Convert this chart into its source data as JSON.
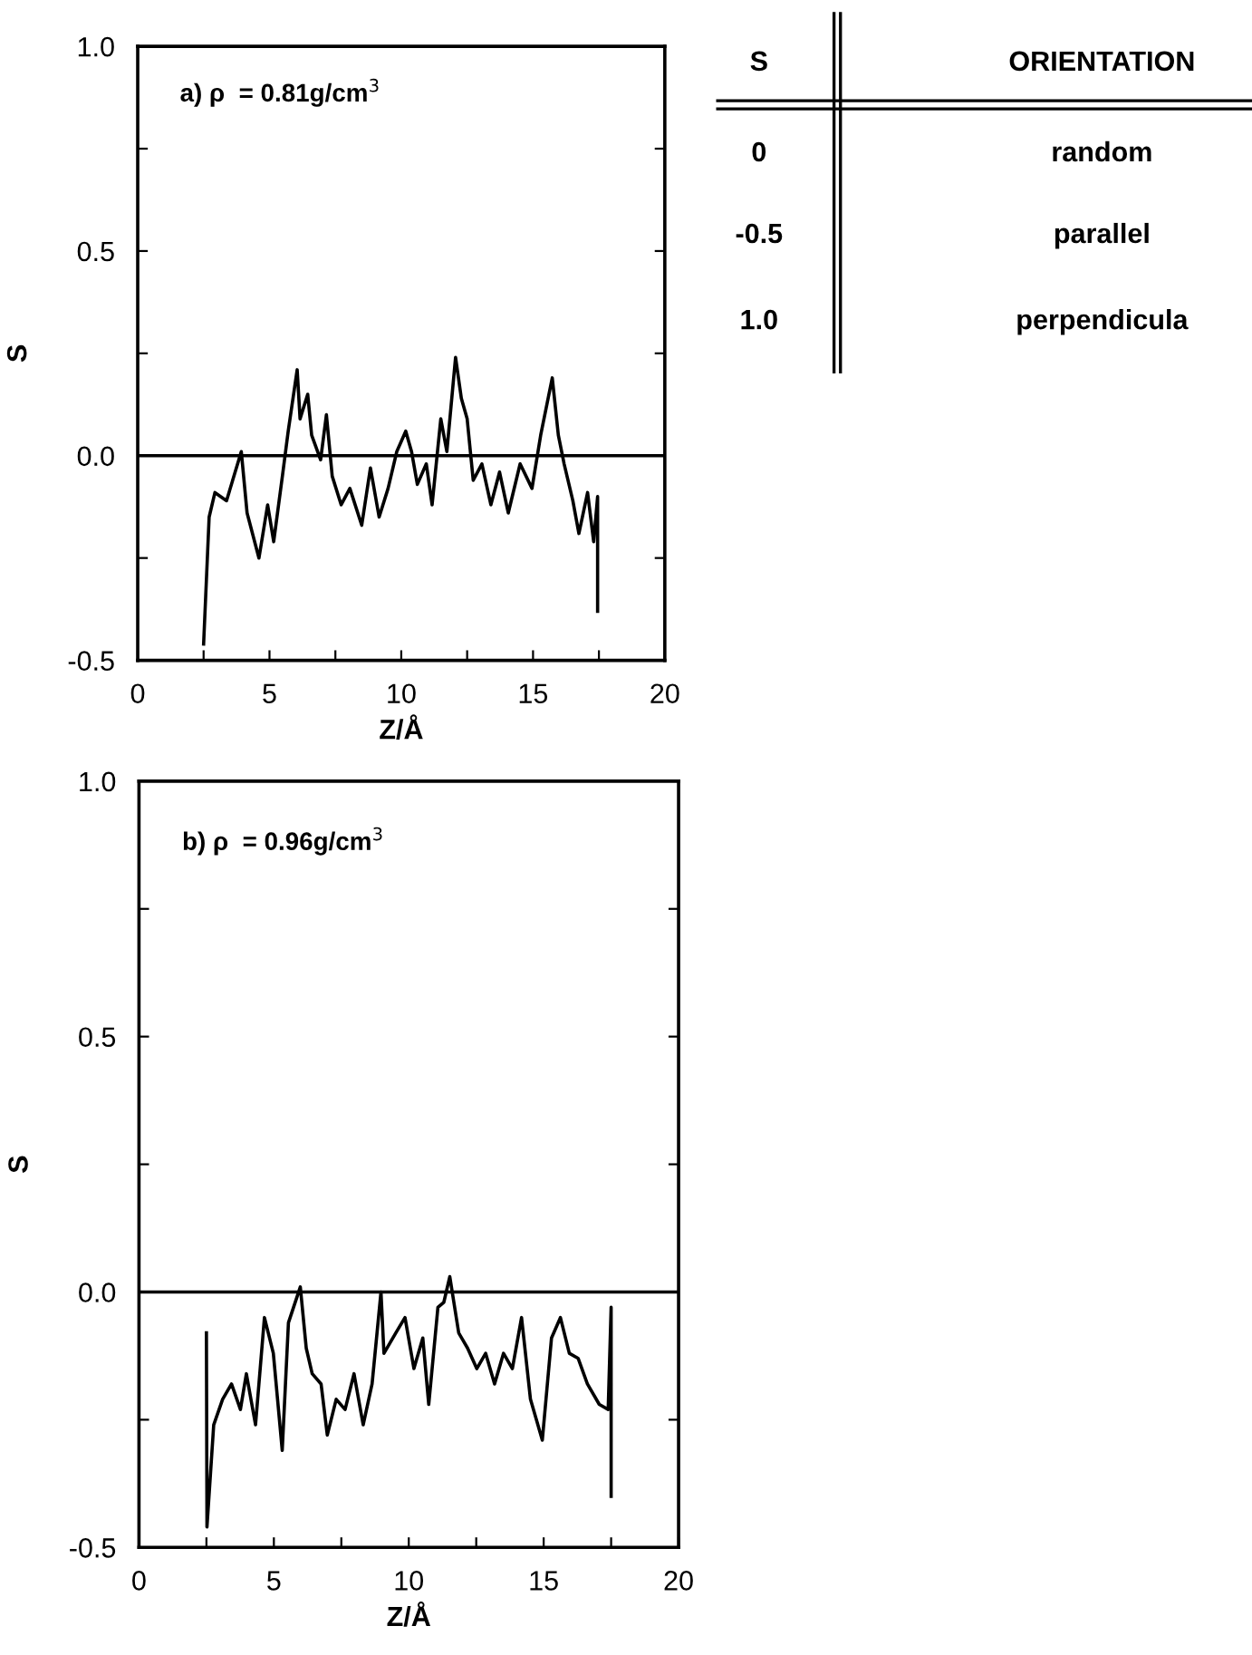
{
  "chart_data": [
    {
      "type": "line",
      "xlabel": "Z/Å",
      "ylabel": "S",
      "annotations": [
        "a) ρ  = 0.81g/cm$^{3}$"
      ],
      "xlim": [
        0,
        20
      ],
      "ylim": [
        -0.5,
        1.0
      ],
      "xticks": [
        0,
        {
          "value": 2.5,
          "label": null
        },
        5,
        {
          "value": 7.5,
          "label": null
        },
        10,
        {
          "value": 12.5,
          "label": null
        },
        15,
        {
          "value": 17.5,
          "label": null
        },
        20
      ],
      "yticks": [
        {
          "value": -0.5,
          "label": "-0.5"
        },
        {
          "value": -0.25,
          "label": null
        },
        {
          "value": 0,
          "label": "0.0"
        },
        {
          "value": 0.25,
          "label": null
        },
        {
          "value": 0.5,
          "label": "0.5"
        },
        {
          "value": 0.75,
          "label": null
        },
        {
          "value": 1.0,
          "label": "1.0"
        }
      ],
      "ref_lines": [
        {
          "axis": "y",
          "value": 0,
          "color": "#000000"
        }
      ],
      "grid": false,
      "legend": false,
      "marker": "none",
      "line_style": "solid",
      "series": [
        {
          "color": "#000000",
          "x": [
            2.5,
            2.71,
            2.93,
            3.37,
            3.93,
            4.15,
            4.6,
            4.93,
            5.16,
            5.49,
            5.71,
            6.05,
            6.16,
            6.45,
            6.6,
            6.94,
            7.16,
            7.38,
            7.72,
            8.05,
            8.5,
            8.83,
            9.16,
            9.5,
            9.83,
            10.17,
            10.39,
            10.61,
            10.95,
            11.17,
            11.5,
            11.73,
            12.06,
            12.28,
            12.5,
            12.73,
            13.06,
            13.4,
            13.73,
            14.06,
            14.51,
            14.96,
            15.29,
            15.73,
            15.96,
            16.18,
            16.51,
            16.74,
            17.07,
            17.3,
            17.45,
            17.45
          ],
          "values": [
            -0.46,
            -0.15,
            -0.09,
            -0.11,
            0.01,
            -0.14,
            -0.25,
            -0.12,
            -0.21,
            -0.05,
            0.06,
            0.21,
            0.09,
            0.15,
            0.05,
            -0.01,
            0.1,
            -0.05,
            -0.12,
            -0.08,
            -0.17,
            -0.03,
            -0.15,
            -0.08,
            0.01,
            0.06,
            0.01,
            -0.07,
            -0.02,
            -0.12,
            0.09,
            0.01,
            0.24,
            0.14,
            0.09,
            -0.06,
            -0.02,
            -0.12,
            -0.04,
            -0.14,
            -0.02,
            -0.08,
            0.05,
            0.19,
            0.05,
            -0.02,
            -0.11,
            -0.19,
            -0.09,
            -0.21,
            -0.1,
            -0.38
          ]
        }
      ]
    },
    {
      "type": "line",
      "xlabel": "Z/Å",
      "ylabel": "S",
      "annotations": [
        "b) ρ  = 0.96g/cm$^{3}$"
      ],
      "xlim": [
        0,
        20
      ],
      "ylim": [
        -0.5,
        1.0
      ],
      "xticks": [
        0,
        {
          "value": 2.5,
          "label": null
        },
        5,
        {
          "value": 7.5,
          "label": null
        },
        10,
        {
          "value": 12.5,
          "label": null
        },
        15,
        {
          "value": 17.5,
          "label": null
        },
        20
      ],
      "yticks": [
        {
          "value": -0.5,
          "label": "-0.5"
        },
        {
          "value": -0.25,
          "label": null
        },
        {
          "value": 0,
          "label": "0.0"
        },
        {
          "value": 0.25,
          "label": null
        },
        {
          "value": 0.5,
          "label": "0.5"
        },
        {
          "value": 0.75,
          "label": null
        },
        {
          "value": 1.0,
          "label": "1.0"
        }
      ],
      "ref_lines": [
        {
          "axis": "y",
          "value": 0,
          "color": "#000000"
        }
      ],
      "grid": false,
      "legend": false,
      "marker": "none",
      "line_style": "solid",
      "series": [
        {
          "color": "#000000",
          "x": [
            2.5,
            2.52,
            2.77,
            3.1,
            3.43,
            3.76,
            3.98,
            4.32,
            4.65,
            4.98,
            5.31,
            5.54,
            5.98,
            6.2,
            6.42,
            6.75,
            6.98,
            7.31,
            7.64,
            7.97,
            8.31,
            8.64,
            8.97,
            9.08,
            9.52,
            9.86,
            10.19,
            10.52,
            10.74,
            11.08,
            11.3,
            11.52,
            11.85,
            12.18,
            12.52,
            12.85,
            13.18,
            13.51,
            13.84,
            14.18,
            14.51,
            14.95,
            15.29,
            15.62,
            15.95,
            16.28,
            16.62,
            17.06,
            17.39,
            17.5,
            17.5
          ],
          "values": [
            -0.08,
            -0.46,
            -0.26,
            -0.21,
            -0.18,
            -0.23,
            -0.16,
            -0.26,
            -0.05,
            -0.12,
            -0.31,
            -0.06,
            0.01,
            -0.11,
            -0.16,
            -0.18,
            -0.28,
            -0.21,
            -0.23,
            -0.16,
            -0.26,
            -0.18,
            0.0,
            -0.12,
            -0.08,
            -0.05,
            -0.15,
            -0.09,
            -0.22,
            -0.03,
            -0.02,
            0.03,
            -0.08,
            -0.11,
            -0.15,
            -0.12,
            -0.18,
            -0.12,
            -0.15,
            -0.05,
            -0.21,
            -0.29,
            -0.09,
            -0.05,
            -0.12,
            -0.13,
            -0.18,
            -0.22,
            -0.23,
            -0.03,
            -0.4
          ]
        }
      ]
    },
    {
      "type": "other",
      "annotations": [
        "S",
        "ORIENTATION",
        "0",
        "random",
        "-0.5",
        "parallel",
        "1.0",
        "perpendicula"
      ]
    }
  ]
}
